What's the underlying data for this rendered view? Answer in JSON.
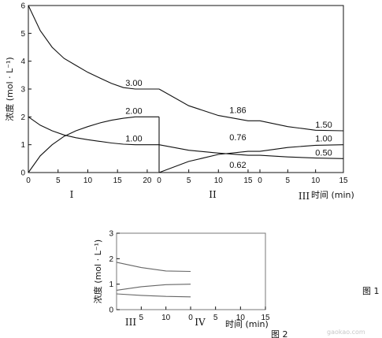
{
  "chart_data": [
    {
      "type": "line",
      "figure_label": "图 1",
      "ylabel": "浓度 (mol · L⁻¹)",
      "xlabel": "时间 (min)",
      "ylim": [
        0,
        6
      ],
      "y_ticks": [
        "0",
        "1",
        "2",
        "3",
        "4",
        "5",
        "6"
      ],
      "stage_labels": [
        "I",
        "II",
        "III"
      ],
      "segments": [
        {
          "stage": "I",
          "x_ticks": [
            "0",
            "5",
            "10",
            "15",
            "20"
          ],
          "xlim": [
            0,
            22
          ],
          "series": [
            {
              "x": [
                0,
                2,
                4,
                6,
                8,
                10,
                12,
                14,
                16,
                18,
                20,
                22
              ],
              "y": [
                6.0,
                5.1,
                4.5,
                4.1,
                3.85,
                3.6,
                3.4,
                3.2,
                3.05,
                3.0,
                3.0,
                3.0
              ]
            },
            {
              "x": [
                0,
                2,
                4,
                6,
                8,
                10,
                12,
                14,
                16,
                18,
                20,
                22
              ],
              "y": [
                0,
                0.6,
                1.0,
                1.3,
                1.5,
                1.65,
                1.78,
                1.88,
                1.95,
                2.0,
                2.0,
                2.0
              ]
            },
            {
              "x": [
                0,
                2,
                4,
                6,
                8,
                10,
                12,
                14,
                16,
                18,
                20,
                22
              ],
              "y": [
                2.0,
                1.7,
                1.5,
                1.35,
                1.25,
                1.18,
                1.12,
                1.06,
                1.02,
                1.0,
                1.0,
                1.0
              ]
            }
          ]
        },
        {
          "stage": "II",
          "x_ticks": [
            "0",
            "5",
            "10",
            "15"
          ],
          "xlim": [
            0,
            17
          ],
          "series": [
            {
              "x": [
                0,
                5,
                10,
                15,
                17
              ],
              "y": [
                3.0,
                2.4,
                2.05,
                1.86,
                1.86
              ]
            },
            {
              "x": [
                0,
                5,
                10,
                15,
                17
              ],
              "y": [
                0,
                0.4,
                0.65,
                0.76,
                0.76
              ]
            },
            {
              "x": [
                0,
                5,
                10,
                15,
                17
              ],
              "y": [
                1.0,
                0.8,
                0.7,
                0.62,
                0.62
              ]
            }
          ]
        },
        {
          "stage": "III",
          "x_ticks": [
            "0",
            "5",
            "10",
            "15"
          ],
          "xlim": [
            0,
            15
          ],
          "series": [
            {
              "x": [
                0,
                5,
                10,
                15
              ],
              "y": [
                1.86,
                1.65,
                1.52,
                1.5
              ]
            },
            {
              "x": [
                0,
                5,
                10,
                15
              ],
              "y": [
                0.76,
                0.9,
                0.98,
                1.0
              ]
            },
            {
              "x": [
                0,
                5,
                10,
                15
              ],
              "y": [
                0.62,
                0.56,
                0.52,
                0.5
              ]
            }
          ]
        }
      ],
      "annotations": [
        {
          "stage": "I",
          "x": 20,
          "y": 3.0,
          "text": "3.00"
        },
        {
          "stage": "I",
          "x": 20,
          "y": 2.0,
          "text": "2.00"
        },
        {
          "stage": "I",
          "x": 20,
          "y": 1.0,
          "text": "1.00"
        },
        {
          "stage": "II",
          "x": 15,
          "y": 1.86,
          "text": "1.86"
        },
        {
          "stage": "II",
          "x": 15,
          "y": 0.76,
          "text": "0.76"
        },
        {
          "stage": "II",
          "x": 15,
          "y": 0.62,
          "text": "0.62"
        },
        {
          "stage": "III",
          "x": 15,
          "y": 1.5,
          "text": "1.50"
        },
        {
          "stage": "III",
          "x": 15,
          "y": 1.0,
          "text": "1.00"
        },
        {
          "stage": "III",
          "x": 15,
          "y": 0.5,
          "text": "0.50"
        }
      ]
    },
    {
      "type": "line",
      "figure_label": "图 2",
      "ylabel": "浓度 (mol · L⁻¹)",
      "xlabel": "时间 (min)",
      "ylim": [
        0,
        3
      ],
      "y_ticks": [
        "0",
        "1",
        "2",
        "3"
      ],
      "stage_labels": [
        "III",
        "IV"
      ],
      "segments": [
        {
          "stage": "III",
          "x_ticks": [
            "5",
            "10",
            "0"
          ],
          "xlim": [
            0,
            15
          ],
          "series": [
            {
              "x": [
                0,
                5,
                10,
                15
              ],
              "y": [
                1.86,
                1.65,
                1.52,
                1.5
              ]
            },
            {
              "x": [
                0,
                5,
                10,
                15
              ],
              "y": [
                0.76,
                0.9,
                0.98,
                1.0
              ]
            },
            {
              "x": [
                0,
                5,
                10,
                15
              ],
              "y": [
                0.62,
                0.56,
                0.52,
                0.5
              ]
            }
          ]
        },
        {
          "stage": "IV",
          "x_ticks": [
            "5",
            "10",
            "15"
          ],
          "xlim": [
            0,
            15
          ],
          "series": []
        }
      ]
    }
  ],
  "watermark": "gaokao.com"
}
